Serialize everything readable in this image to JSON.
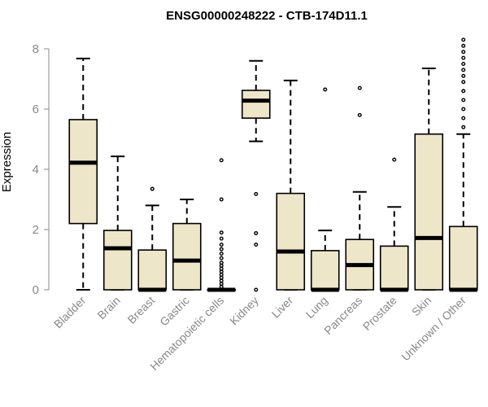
{
  "chart_data": {
    "type": "boxplot",
    "title": "ENSG00000248222 - CTB-174D11.1",
    "xlabel": "",
    "ylabel": "Expression",
    "ylim": [
      0,
      8.4
    ],
    "yticks": [
      0,
      2,
      4,
      6,
      8
    ],
    "grid": false,
    "categories": [
      "Bladder",
      "Brain",
      "Breast",
      "Gastric",
      "Hematopoietic cells",
      "Kidney",
      "Liver",
      "Lung",
      "Pancreas",
      "Prostate",
      "Skin",
      "Unknown / Other"
    ],
    "boxes": [
      {
        "name": "Bladder",
        "whisker_low": 0,
        "q1": 2.2,
        "median": 4.22,
        "q3": 5.65,
        "whisker_high": 7.68,
        "outliers": []
      },
      {
        "name": "Brain",
        "whisker_low": 0,
        "q1": 0,
        "median": 1.38,
        "q3": 1.97,
        "whisker_high": 4.43,
        "outliers": []
      },
      {
        "name": "Breast",
        "whisker_low": 0,
        "q1": 0,
        "median": 0,
        "q3": 1.32,
        "whisker_high": 2.8,
        "outliers": [
          3.35
        ]
      },
      {
        "name": "Gastric",
        "whisker_low": 0,
        "q1": 0,
        "median": 0.97,
        "q3": 2.2,
        "whisker_high": 3.0,
        "outliers": []
      },
      {
        "name": "Hematopoietic cells",
        "whisker_low": 0,
        "q1": 0,
        "median": 0,
        "q3": 0,
        "whisker_high": 0,
        "outliers": [
          0.1,
          0.2,
          0.3,
          0.4,
          0.5,
          0.6,
          0.7,
          0.8,
          0.9,
          1.05,
          1.2,
          1.35,
          1.5,
          1.7,
          1.9,
          3.0,
          4.3
        ]
      },
      {
        "name": "Kidney",
        "whisker_low": 4.93,
        "q1": 5.7,
        "median": 6.28,
        "q3": 6.62,
        "whisker_high": 7.6,
        "outliers": [
          3.18,
          1.88,
          1.5,
          0
        ]
      },
      {
        "name": "Liver",
        "whisker_low": 0,
        "q1": 0,
        "median": 1.27,
        "q3": 3.2,
        "whisker_high": 6.95,
        "outliers": []
      },
      {
        "name": "Lung",
        "whisker_low": 0,
        "q1": 0,
        "median": 0,
        "q3": 1.3,
        "whisker_high": 1.97,
        "outliers": [
          6.65
        ]
      },
      {
        "name": "Pancreas",
        "whisker_low": 0,
        "q1": 0,
        "median": 0.82,
        "q3": 1.67,
        "whisker_high": 3.25,
        "outliers": [
          5.8,
          6.7
        ]
      },
      {
        "name": "Prostate",
        "whisker_low": 0,
        "q1": 0,
        "median": 0,
        "q3": 1.45,
        "whisker_high": 2.75,
        "outliers": [
          4.32
        ]
      },
      {
        "name": "Skin",
        "whisker_low": 0,
        "q1": 0,
        "median": 1.72,
        "q3": 5.17,
        "whisker_high": 7.35,
        "outliers": []
      },
      {
        "name": "Unknown / Other",
        "whisker_low": 0,
        "q1": 0,
        "median": 0,
        "q3": 2.1,
        "whisker_high": 5.17,
        "outliers": [
          5.4,
          5.7,
          6.0,
          6.3,
          6.6,
          6.9,
          7.1,
          7.3,
          7.5,
          7.7,
          7.9,
          8.1,
          8.3
        ]
      }
    ]
  },
  "colors": {
    "box_fill": "#ede6c9",
    "box_stroke": "#000000",
    "axis": "#888888",
    "label_text": "#888888"
  }
}
